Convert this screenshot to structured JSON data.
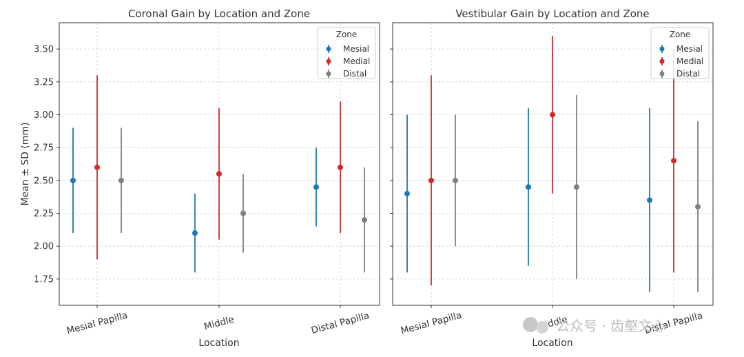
{
  "chart_data": [
    {
      "type": "errorbar",
      "title": "Coronal Gain by Location and Zone",
      "xlabel": "Location",
      "ylabel": "Mean ± SD (mm)",
      "ylim": [
        1.55,
        3.7
      ],
      "yticks": [
        "1.75",
        "2.00",
        "2.25",
        "2.50",
        "2.75",
        "3.00",
        "3.25",
        "3.50"
      ],
      "categories": [
        "Mesial Papilla",
        "Middle",
        "Distal Papilla"
      ],
      "legend_title": "Zone",
      "legend_position": "top-right",
      "series": [
        {
          "name": "Mesial",
          "color": "#1f77b4",
          "means": [
            2.5,
            2.1,
            2.45
          ],
          "sd": [
            0.4,
            0.3,
            0.3
          ]
        },
        {
          "name": "Medial",
          "color": "#d62728",
          "means": [
            2.6,
            2.55,
            2.6
          ],
          "sd": [
            0.7,
            0.5,
            0.5
          ]
        },
        {
          "name": "Distal",
          "color": "#7f7f7f",
          "means": [
            2.5,
            2.25,
            2.2
          ],
          "sd": [
            0.4,
            0.3,
            0.4
          ]
        }
      ]
    },
    {
      "type": "errorbar",
      "title": "Vestibular Gain by Location and Zone",
      "xlabel": "Location",
      "ylabel": "",
      "ylim": [
        1.55,
        3.7
      ],
      "yticks": [],
      "categories": [
        "Mesial Papilla",
        "Middle",
        "Distal Papilla"
      ],
      "legend_title": "Zone",
      "legend_position": "top-right",
      "series": [
        {
          "name": "Mesial",
          "color": "#1f77b4",
          "means": [
            2.4,
            2.45,
            2.35
          ],
          "sd": [
            0.6,
            0.6,
            0.7
          ]
        },
        {
          "name": "Medial",
          "color": "#d62728",
          "means": [
            2.5,
            3.0,
            2.65
          ],
          "sd": [
            0.8,
            0.6,
            0.85
          ]
        },
        {
          "name": "Distal",
          "color": "#7f7f7f",
          "means": [
            2.5,
            2.45,
            2.3
          ],
          "sd": [
            0.5,
            0.7,
            0.65
          ]
        }
      ]
    }
  ],
  "watermark": {
    "text": "公众号 · 齿壑文心"
  }
}
